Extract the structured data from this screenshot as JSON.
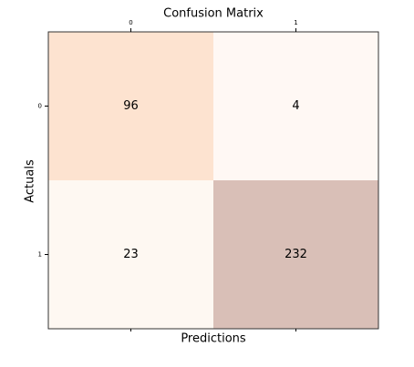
{
  "chart_data": {
    "type": "heatmap",
    "title": "Confusion Matrix",
    "x_label": "Predictions",
    "y_label": "Actuals",
    "x_categories": [
      "0",
      "1"
    ],
    "y_categories": [
      "0",
      "1"
    ],
    "values": [
      [
        96,
        4
      ],
      [
        23,
        232
      ]
    ],
    "colors": [
      [
        "#fde3d0",
        "#fff8f4"
      ],
      [
        "#fef8f2",
        "#d9bfb7"
      ]
    ],
    "x_axis_position": "top"
  }
}
